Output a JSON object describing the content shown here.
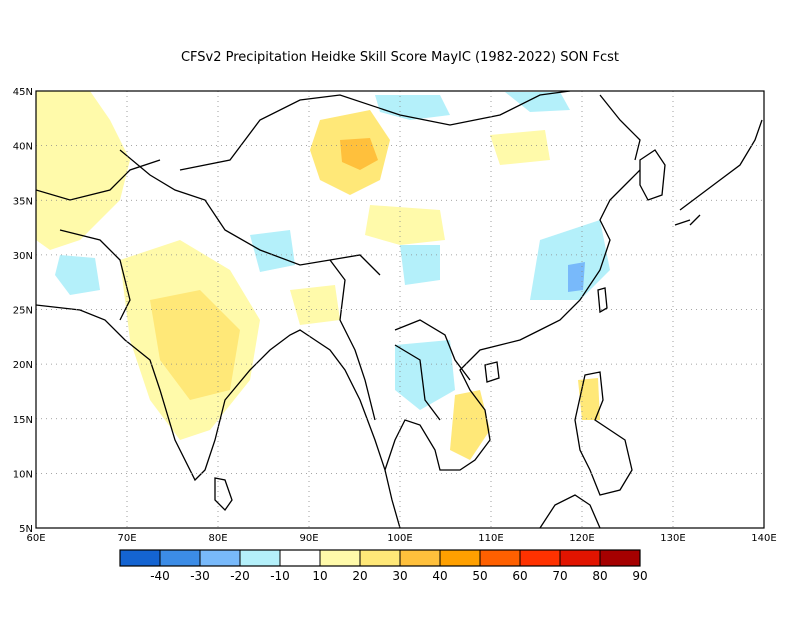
{
  "title": "CFSv2  Precipitation Heidke Skill Score MayIC (1982-2022) SON Fcst",
  "map": {
    "lon_range": [
      60,
      140
    ],
    "lat_range": [
      5,
      45
    ],
    "lon_ticks": [
      "60E",
      "70E",
      "80E",
      "90E",
      "100E",
      "110E",
      "120E",
      "130E",
      "140E"
    ],
    "lat_ticks": [
      "45N",
      "40N",
      "35N",
      "30N",
      "25N",
      "20N",
      "15N",
      "10N",
      "5N"
    ],
    "grid": "dotted"
  },
  "colorbar": {
    "colors": [
      "#1464d2",
      "#3c8ce6",
      "#78b9fa",
      "#b4f0fa",
      "#ffffff",
      "#fffaaa",
      "#ffe878",
      "#ffc03c",
      "#ffa000",
      "#ff6000",
      "#ff3200",
      "#e11400",
      "#a50000"
    ],
    "labels": [
      "-40",
      "-30",
      "-20",
      "-10",
      "10",
      "20",
      "30",
      "40",
      "50",
      "60",
      "70",
      "80",
      "90"
    ]
  },
  "skill_patches": [
    {
      "name": "central-india-positive",
      "color": "#fffaaa"
    },
    {
      "name": "central-india-core",
      "color": "#ffe878"
    },
    {
      "name": "qinghai-positive",
      "color": "#ffe878"
    },
    {
      "name": "qinghai-core",
      "color": "#ffc03c"
    },
    {
      "name": "mongolia-negative",
      "color": "#b4f0fa"
    },
    {
      "name": "east-china-negative",
      "color": "#b4f0fa"
    },
    {
      "name": "indochina-negative",
      "color": "#b4f0fa"
    },
    {
      "name": "vietnam-positive",
      "color": "#ffe878"
    }
  ]
}
